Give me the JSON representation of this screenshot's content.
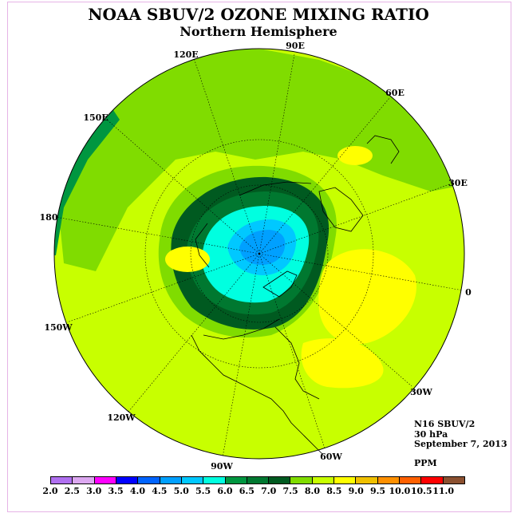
{
  "title": "NOAA SBUV/2 OZONE MIXING RATIO",
  "subtitle": "Northern Hemisphere",
  "longitude_labels": [
    "90E",
    "60E",
    "30E",
    "0",
    "30W",
    "60W",
    "90W",
    "120W",
    "150W",
    "180",
    "150E",
    "120E"
  ],
  "info": {
    "satellite": "N16 SBUV/2",
    "level": "30 hPa",
    "date": "September 7, 2013"
  },
  "units": "PPM",
  "colorbar": {
    "ticks": [
      "2.0",
      "2.5",
      "3.0",
      "3.5",
      "4.0",
      "4.5",
      "5.0",
      "5.5",
      "6.0",
      "6.5",
      "7.0",
      "7.5",
      "8.0",
      "8.5",
      "9.0",
      "9.5",
      "10.0",
      "10.5",
      "11.0"
    ],
    "colors": [
      "#b070f0",
      "#dca8f0",
      "#ff00ff",
      "#0000ff",
      "#0064ff",
      "#00a0ff",
      "#00c8ff",
      "#00ffe0",
      "#009640",
      "#007830",
      "#005a20",
      "#80dc00",
      "#c8ff00",
      "#ffff00",
      "#f0c000",
      "#ff9000",
      "#ff6000",
      "#ff0000",
      "#8b5030"
    ]
  }
}
